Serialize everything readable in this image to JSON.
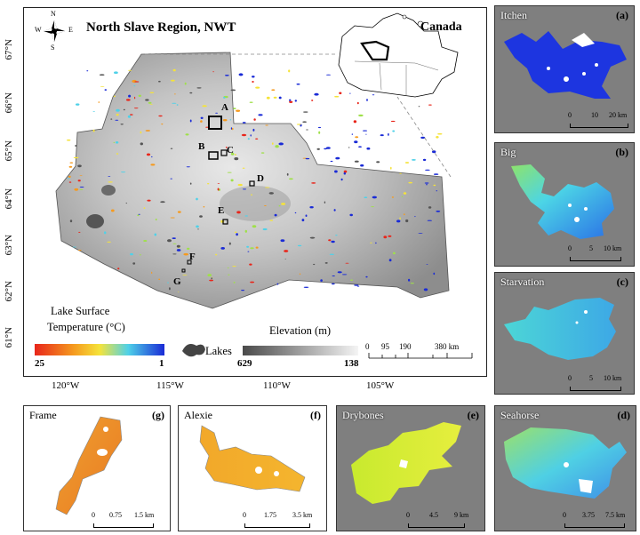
{
  "main_map": {
    "title": "North Slave Region, NWT",
    "inset_label": "Canada",
    "lat_labels": [
      "67°N",
      "66°N",
      "65°N",
      "64°N",
      "63°N",
      "62°N",
      "61°N"
    ],
    "lon_labels": [
      "120°W",
      "115°W",
      "110°W",
      "105°W"
    ],
    "compass": {
      "n": "N",
      "s": "S",
      "e": "E",
      "w": "W"
    },
    "site_labels": [
      "A",
      "B",
      "C",
      "D",
      "E",
      "F",
      "G"
    ],
    "lst_legend": {
      "title_line1": "Lake Surface",
      "title_line2": "Temperature (°C)",
      "min": "25",
      "max": "1"
    },
    "lakes_legend": "Lakes",
    "elev_legend": {
      "title": "Elevation (m)",
      "min": "629",
      "max": "138"
    },
    "scalebar": {
      "labels": [
        "0",
        "95",
        "190",
        "380 km"
      ]
    }
  },
  "panels": [
    {
      "id": "a",
      "name": "Itchen",
      "tag": "(a)",
      "scale": [
        "0",
        "10",
        "20 km"
      ]
    },
    {
      "id": "b",
      "name": "Big",
      "tag": "(b)",
      "scale": [
        "0",
        "5",
        "10 km"
      ]
    },
    {
      "id": "c",
      "name": "Starvation",
      "tag": "(c)",
      "scale": [
        "0",
        "5",
        "10 km"
      ]
    },
    {
      "id": "d",
      "name": "Seahorse",
      "tag": "(d)",
      "scale": [
        "0",
        "3.75",
        "7.5 km"
      ]
    },
    {
      "id": "e",
      "name": "Drybones",
      "tag": "(e)",
      "scale": [
        "0",
        "4.5",
        "9 km"
      ]
    },
    {
      "id": "f",
      "name": "Alexie",
      "tag": "(f)",
      "scale": [
        "0",
        "1.75",
        "3.5 km"
      ]
    },
    {
      "id": "g",
      "name": "Frame",
      "tag": "(g)",
      "scale": [
        "0",
        "0.75",
        "1.5 km"
      ]
    }
  ],
  "colors": {
    "lst_cold": "#1a2bd6",
    "lst_mid": "#4fd1e8",
    "lst_warm": "#f5e33a",
    "lst_hot": "#e8261b",
    "elev_high": "#5a5a5a",
    "elev_low": "#f2f2f2",
    "panel_bg": "#7f7f7f",
    "lake_legend": "#444444"
  }
}
